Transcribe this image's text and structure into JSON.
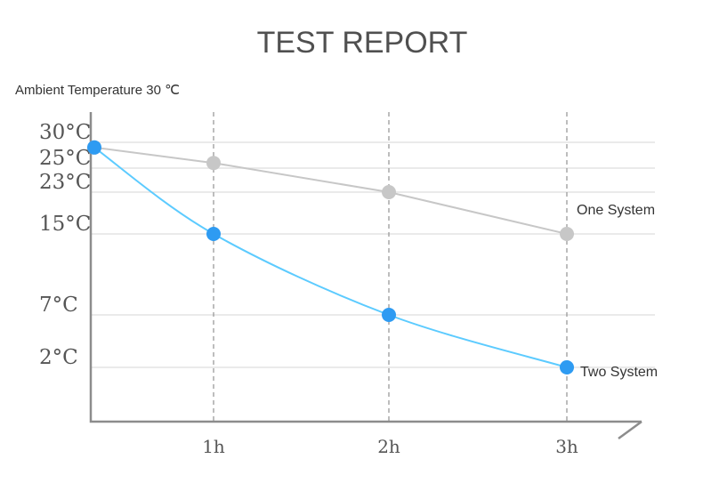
{
  "chart_data": {
    "type": "line",
    "title": "TEST REPORT",
    "subtitle": "Ambient Temperature 30 ℃",
    "x": [
      0,
      1,
      2,
      3
    ],
    "x_tick_labels": [
      "1h",
      "2h",
      "3h"
    ],
    "y_tick_values": [
      30,
      25,
      23,
      15,
      7,
      2
    ],
    "y_tick_labels": [
      "30°C",
      "25°C",
      "23°C",
      "15°C",
      "7°C",
      "2°C"
    ],
    "series": [
      {
        "name": "One System",
        "values": [
          29,
          26,
          23,
          15
        ],
        "color": "#c7c7c7"
      },
      {
        "name": "Two System",
        "values": [
          29,
          15,
          7,
          2
        ],
        "color": "#2e9bf2",
        "line_color": "#5ccbff"
      }
    ],
    "grid": true,
    "legend": "series labels at line ends"
  }
}
